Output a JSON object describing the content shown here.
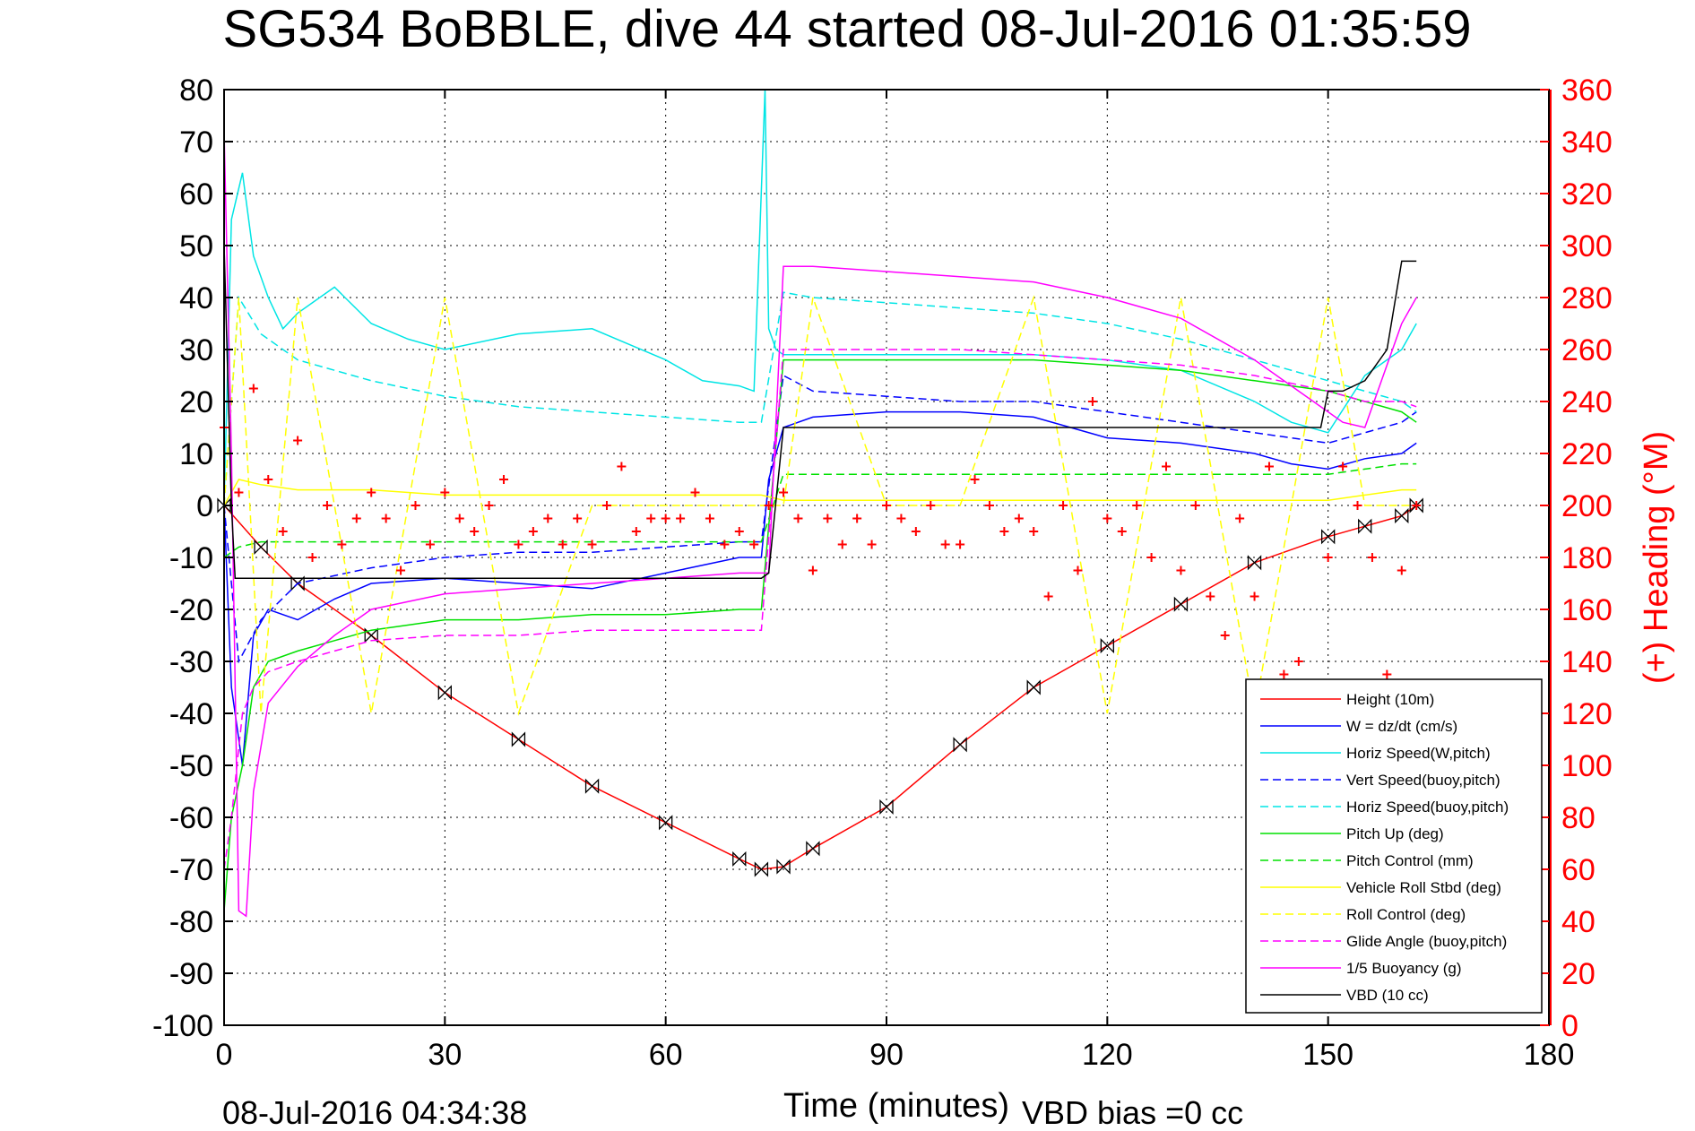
{
  "chart_data": {
    "type": "line",
    "title": "SG534 BoBBLE, dive 44 started 08-Jul-2016 01:35:59",
    "xlabel": "Time (minutes)",
    "ylabel": "",
    "y2label": "(+) Heading (°M)",
    "xlim": [
      0,
      180
    ],
    "ylim": [
      -100,
      80
    ],
    "y2lim": [
      0,
      360
    ],
    "xticks": [
      0,
      30,
      60,
      90,
      120,
      150,
      180
    ],
    "yticks": [
      80,
      70,
      60,
      50,
      40,
      30,
      20,
      10,
      0,
      -10,
      -20,
      -30,
      -40,
      -50,
      -60,
      -70,
      -80,
      -90,
      -100
    ],
    "y2ticks": [
      360,
      340,
      320,
      300,
      280,
      260,
      240,
      220,
      200,
      180,
      160,
      140,
      120,
      100,
      80,
      60,
      40,
      20,
      0
    ],
    "grid": true,
    "legend_position": "bottom-right",
    "footer_left": "08-Jul-2016 04:34:38",
    "footer_right": "VBD bias =0 cc",
    "colors": {
      "red": "#ff0000",
      "blue": "#0000ff",
      "cyan": "#00e5e5",
      "green": "#00e000",
      "yellow": "#ffff00",
      "magenta": "#ff00ff",
      "black": "#000000"
    },
    "series": [
      {
        "name": "Height (10m)",
        "color": "#ff0000",
        "dash": "solid",
        "x": [
          0,
          5,
          10,
          20,
          30,
          40,
          50,
          60,
          70,
          73,
          76,
          80,
          90,
          100,
          110,
          120,
          130,
          140,
          150,
          155,
          160,
          162
        ],
        "y": [
          0,
          -8,
          -15,
          -25,
          -36,
          -45,
          -54,
          -61,
          -68,
          -70,
          -69.5,
          -66,
          -58,
          -46,
          -35,
          -27,
          -19,
          -11,
          -6,
          -4,
          -2,
          0
        ]
      },
      {
        "name": "W = dz/dt (cm/s)",
        "color": "#0000ff",
        "dash": "solid",
        "x": [
          0,
          1,
          2.5,
          4,
          6,
          10,
          15,
          20,
          30,
          40,
          50,
          60,
          70,
          73,
          74,
          76,
          80,
          90,
          100,
          110,
          115,
          120,
          130,
          140,
          145,
          150,
          155,
          160,
          162
        ],
        "y": [
          0,
          -35,
          -50,
          -25,
          -20,
          -22,
          -18,
          -15,
          -14,
          -15,
          -16,
          -13,
          -10,
          -10,
          5,
          15,
          17,
          18,
          18,
          17,
          15,
          13,
          12,
          10,
          8,
          7,
          9,
          10,
          12
        ]
      },
      {
        "name": "Horiz Speed(W,pitch)",
        "color": "#00e5e5",
        "dash": "solid",
        "x": [
          0,
          1,
          2.5,
          4,
          6,
          8,
          10,
          13,
          15,
          20,
          25,
          30,
          40,
          50,
          60,
          65,
          70,
          72,
          73.5,
          74,
          75,
          76,
          80,
          90,
          100,
          110,
          120,
          130,
          140,
          145,
          150,
          155,
          160,
          162
        ],
        "y": [
          0,
          55,
          64,
          48,
          40,
          34,
          37,
          40,
          42,
          35,
          32,
          30,
          33,
          34,
          28,
          24,
          23,
          22,
          80,
          34,
          30,
          29,
          29,
          29,
          29,
          29,
          28,
          26,
          20,
          16,
          14,
          25,
          30,
          35
        ]
      },
      {
        "name": "Vert Speed(buoy,pitch)",
        "color": "#0000ff",
        "dash": "dashed",
        "x": [
          0,
          2,
          5,
          10,
          20,
          30,
          40,
          50,
          60,
          70,
          73,
          76,
          80,
          90,
          100,
          110,
          120,
          130,
          140,
          150,
          155,
          160,
          162
        ],
        "y": [
          0,
          -30,
          -22,
          -15,
          -12,
          -10,
          -9,
          -9,
          -8,
          -7,
          -7,
          25,
          22,
          21,
          20,
          20,
          18,
          16,
          14,
          12,
          14,
          16,
          18
        ]
      },
      {
        "name": "Horiz Speed(buoy,pitch)",
        "color": "#00e5e5",
        "dash": "dashed",
        "x": [
          0,
          2,
          5,
          10,
          15,
          20,
          30,
          40,
          50,
          60,
          70,
          73,
          76,
          80,
          90,
          100,
          110,
          120,
          130,
          140,
          150,
          155,
          160,
          162
        ],
        "y": [
          0,
          40,
          33,
          28,
          26,
          24,
          21,
          19,
          18,
          17,
          16,
          16,
          41,
          40,
          39,
          38,
          37,
          35,
          32,
          28,
          24,
          22,
          20,
          18
        ]
      },
      {
        "name": "Pitch Up (deg)",
        "color": "#00e000",
        "dash": "solid",
        "x": [
          0,
          1,
          2.5,
          4,
          6,
          10,
          15,
          20,
          30,
          40,
          50,
          60,
          70,
          73,
          76,
          80,
          90,
          100,
          110,
          120,
          130,
          140,
          150,
          155,
          160,
          162
        ],
        "y": [
          -78,
          -60,
          -50,
          -35,
          -30,
          -28,
          -26,
          -24,
          -22,
          -22,
          -21,
          -21,
          -20,
          -20,
          28,
          28,
          28,
          28,
          28,
          27,
          26,
          24,
          22,
          20,
          18,
          16
        ]
      },
      {
        "name": "Pitch Control (mm)",
        "color": "#00e000",
        "dash": "dashed",
        "x": [
          0,
          2,
          5,
          10,
          20,
          30,
          40,
          50,
          60,
          70,
          73,
          76,
          80,
          90,
          100,
          110,
          120,
          130,
          140,
          150,
          155,
          160,
          162
        ],
        "y": [
          -10,
          -8,
          -7,
          -7,
          -7,
          -7,
          -7,
          -7,
          -7,
          -7,
          -7,
          6,
          6,
          6,
          6,
          6,
          6,
          6,
          6,
          6,
          7,
          8,
          8
        ]
      },
      {
        "name": "Vehicle Roll Stbd (deg)",
        "color": "#ffff00",
        "dash": "solid",
        "x": [
          0,
          2,
          5,
          10,
          20,
          30,
          40,
          50,
          60,
          70,
          73,
          76,
          80,
          90,
          100,
          110,
          120,
          130,
          140,
          150,
          155,
          160,
          162
        ],
        "y": [
          0,
          5,
          4,
          3,
          3,
          2,
          2,
          2,
          2,
          2,
          2,
          1,
          1,
          1,
          1,
          1,
          1,
          1,
          1,
          1,
          2,
          3,
          3
        ]
      },
      {
        "name": "Roll Control (deg)",
        "color": "#ffff00",
        "dash": "dashed",
        "x": [
          0,
          2,
          5,
          10,
          20,
          30,
          40,
          50,
          60,
          70,
          73,
          76,
          80,
          90,
          100,
          110,
          120,
          130,
          140,
          150,
          155,
          160,
          162
        ],
        "y": [
          0,
          40,
          -40,
          40,
          -40,
          40,
          -40,
          0,
          0,
          0,
          0,
          0,
          40,
          0,
          0,
          40,
          -40,
          40,
          -40,
          40,
          0,
          0,
          0
        ]
      },
      {
        "name": "Glide Angle (buoy,pitch)",
        "color": "#ff00ff",
        "dash": "dashed",
        "x": [
          0,
          1,
          2.5,
          4,
          6,
          10,
          15,
          20,
          30,
          40,
          50,
          60,
          70,
          73,
          76,
          80,
          90,
          100,
          110,
          120,
          130,
          140,
          150,
          155,
          160,
          162
        ],
        "y": [
          -70,
          -60,
          -40,
          -35,
          -32,
          -30,
          -28,
          -26,
          -25,
          -25,
          -24,
          -24,
          -24,
          -24,
          30,
          30,
          30,
          30,
          29,
          28,
          27,
          25,
          22,
          20,
          20,
          19
        ]
      },
      {
        "name": "1/5 Buoyancy (g)",
        "color": "#ff00ff",
        "dash": "solid",
        "x": [
          0,
          1,
          2,
          3,
          4,
          6,
          10,
          15,
          20,
          30,
          40,
          50,
          60,
          70,
          73,
          74,
          76,
          80,
          90,
          100,
          110,
          120,
          130,
          140,
          150,
          152,
          155,
          160,
          162
        ],
        "y": [
          72,
          10,
          -78,
          -79,
          -55,
          -38,
          -31,
          -25,
          -20,
          -17,
          -16,
          -15,
          -14,
          -13,
          -13,
          -13,
          46,
          46,
          45,
          44,
          43,
          40,
          36,
          28,
          18,
          16,
          15,
          35,
          40
        ]
      },
      {
        "name": "VBD (10 cc)",
        "color": "#000000",
        "dash": "solid",
        "x": [
          0,
          1,
          1.5,
          2,
          20,
          40,
          60,
          73,
          74,
          76,
          77,
          80,
          90,
          100,
          110,
          120,
          130,
          140,
          149,
          150,
          152,
          155,
          158,
          160,
          162
        ],
        "y": [
          50,
          0,
          -14,
          -14,
          -14,
          -14,
          -14,
          -14,
          -13,
          15,
          15,
          15,
          15,
          15,
          15,
          15,
          15,
          15,
          15,
          22,
          22,
          24,
          30,
          47,
          47
        ]
      },
      {
        "name": "",
        "color": "#ff0000",
        "dash": "plus",
        "axis": "right",
        "x": [
          0,
          2,
          4,
          6,
          8,
          10,
          12,
          14,
          16,
          18,
          20,
          22,
          24,
          26,
          28,
          30,
          32,
          34,
          36,
          38,
          40,
          42,
          44,
          46,
          48,
          50,
          52,
          54,
          56,
          58,
          60,
          62,
          64,
          66,
          68,
          70,
          72,
          74,
          76,
          78,
          80,
          82,
          84,
          86,
          88,
          90,
          92,
          94,
          96,
          98,
          100,
          102,
          104,
          106,
          108,
          110,
          112,
          114,
          116,
          118,
          120,
          122,
          124,
          126,
          128,
          130,
          132,
          134,
          136,
          138,
          140,
          142,
          144,
          146,
          148,
          150,
          152,
          154,
          156,
          158,
          160,
          162
        ],
        "y": [
          230,
          205,
          245,
          210,
          190,
          225,
          180,
          200,
          185,
          195,
          205,
          195,
          175,
          200,
          185,
          205,
          195,
          190,
          200,
          210,
          185,
          190,
          195,
          185,
          195,
          185,
          200,
          215,
          190,
          195,
          195,
          195,
          205,
          195,
          185,
          190,
          185,
          200,
          205,
          195,
          175,
          195,
          185,
          195,
          185,
          200,
          195,
          190,
          200,
          185,
          185,
          210,
          200,
          190,
          195,
          190,
          165,
          200,
          175,
          240,
          195,
          190,
          200,
          180,
          215,
          175,
          200,
          165,
          150,
          195,
          165,
          215,
          135,
          140,
          125,
          180,
          215,
          200,
          180,
          135,
          175,
          200
        ]
      }
    ]
  }
}
